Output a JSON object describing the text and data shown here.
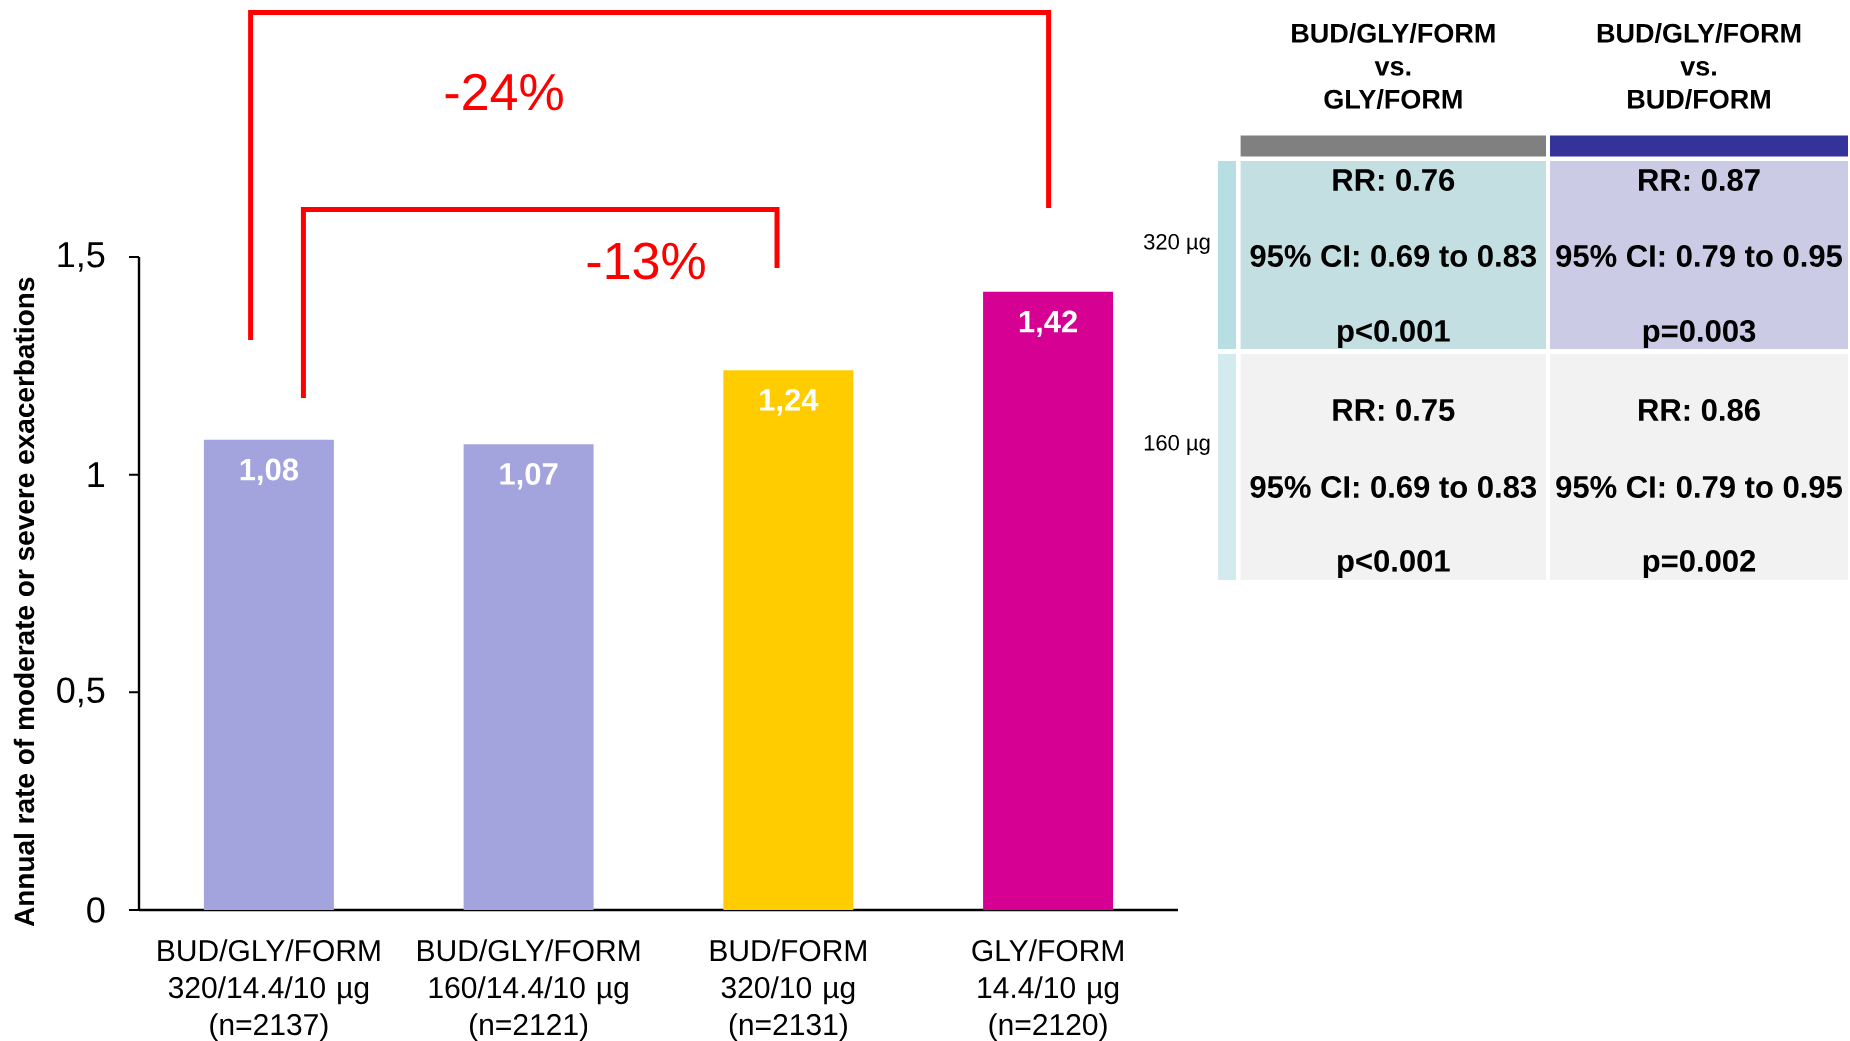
{
  "chart_data": [
    {
      "type": "bar",
      "ylabel": "Annual rate of moderate or severe exacerbations",
      "categories": [
        "BUD/GLY/FORM 320/14.4/10 µg (n=2137)",
        "BUD/GLY/FORM 160/14.4/10 µg (n=2121)",
        "BUD/FORM 320/10 µg (n=2131)",
        "GLY/FORM 14.4/10 µg (n=2120)"
      ],
      "values": [
        1.08,
        1.07,
        1.24,
        1.42
      ],
      "colors": [
        "#a3a3de",
        "#a3a3de",
        "#ffcc00",
        "#d60093"
      ],
      "value_labels": [
        "1,08",
        "1,07",
        "1,24",
        "1,42"
      ],
      "ylim": [
        0,
        1.5
      ],
      "yticks": [
        0,
        {
          "value": 0.5,
          "label": "0,5"
        },
        1,
        {
          "value": 1.5,
          "label": "1,5"
        }
      ],
      "annotations": [
        "-24%",
        "-13%"
      ]
    },
    {
      "type": "other",
      "categories": [
        "BUD/GLY/FORM vs. GLY/FORM",
        "BUD/GLY/FORM vs. BUD/FORM"
      ],
      "y_categories": [
        "320 µg",
        "160 µg"
      ],
      "colors": [
        "#808080",
        "#333399"
      ],
      "annotations": [
        "RR: 0.76",
        "95% CI: 0.69 to 0.83",
        "p<0.001",
        "RR: 0.87",
        "95% CI: 0.79 to 0.95",
        "p=0.003",
        "RR: 0.75",
        "95% CI: 0.69 to 0.83",
        "p<0.001",
        "RR: 0.86",
        "95% CI: 0.79 to 0.95",
        "p=0.002"
      ]
    }
  ]
}
